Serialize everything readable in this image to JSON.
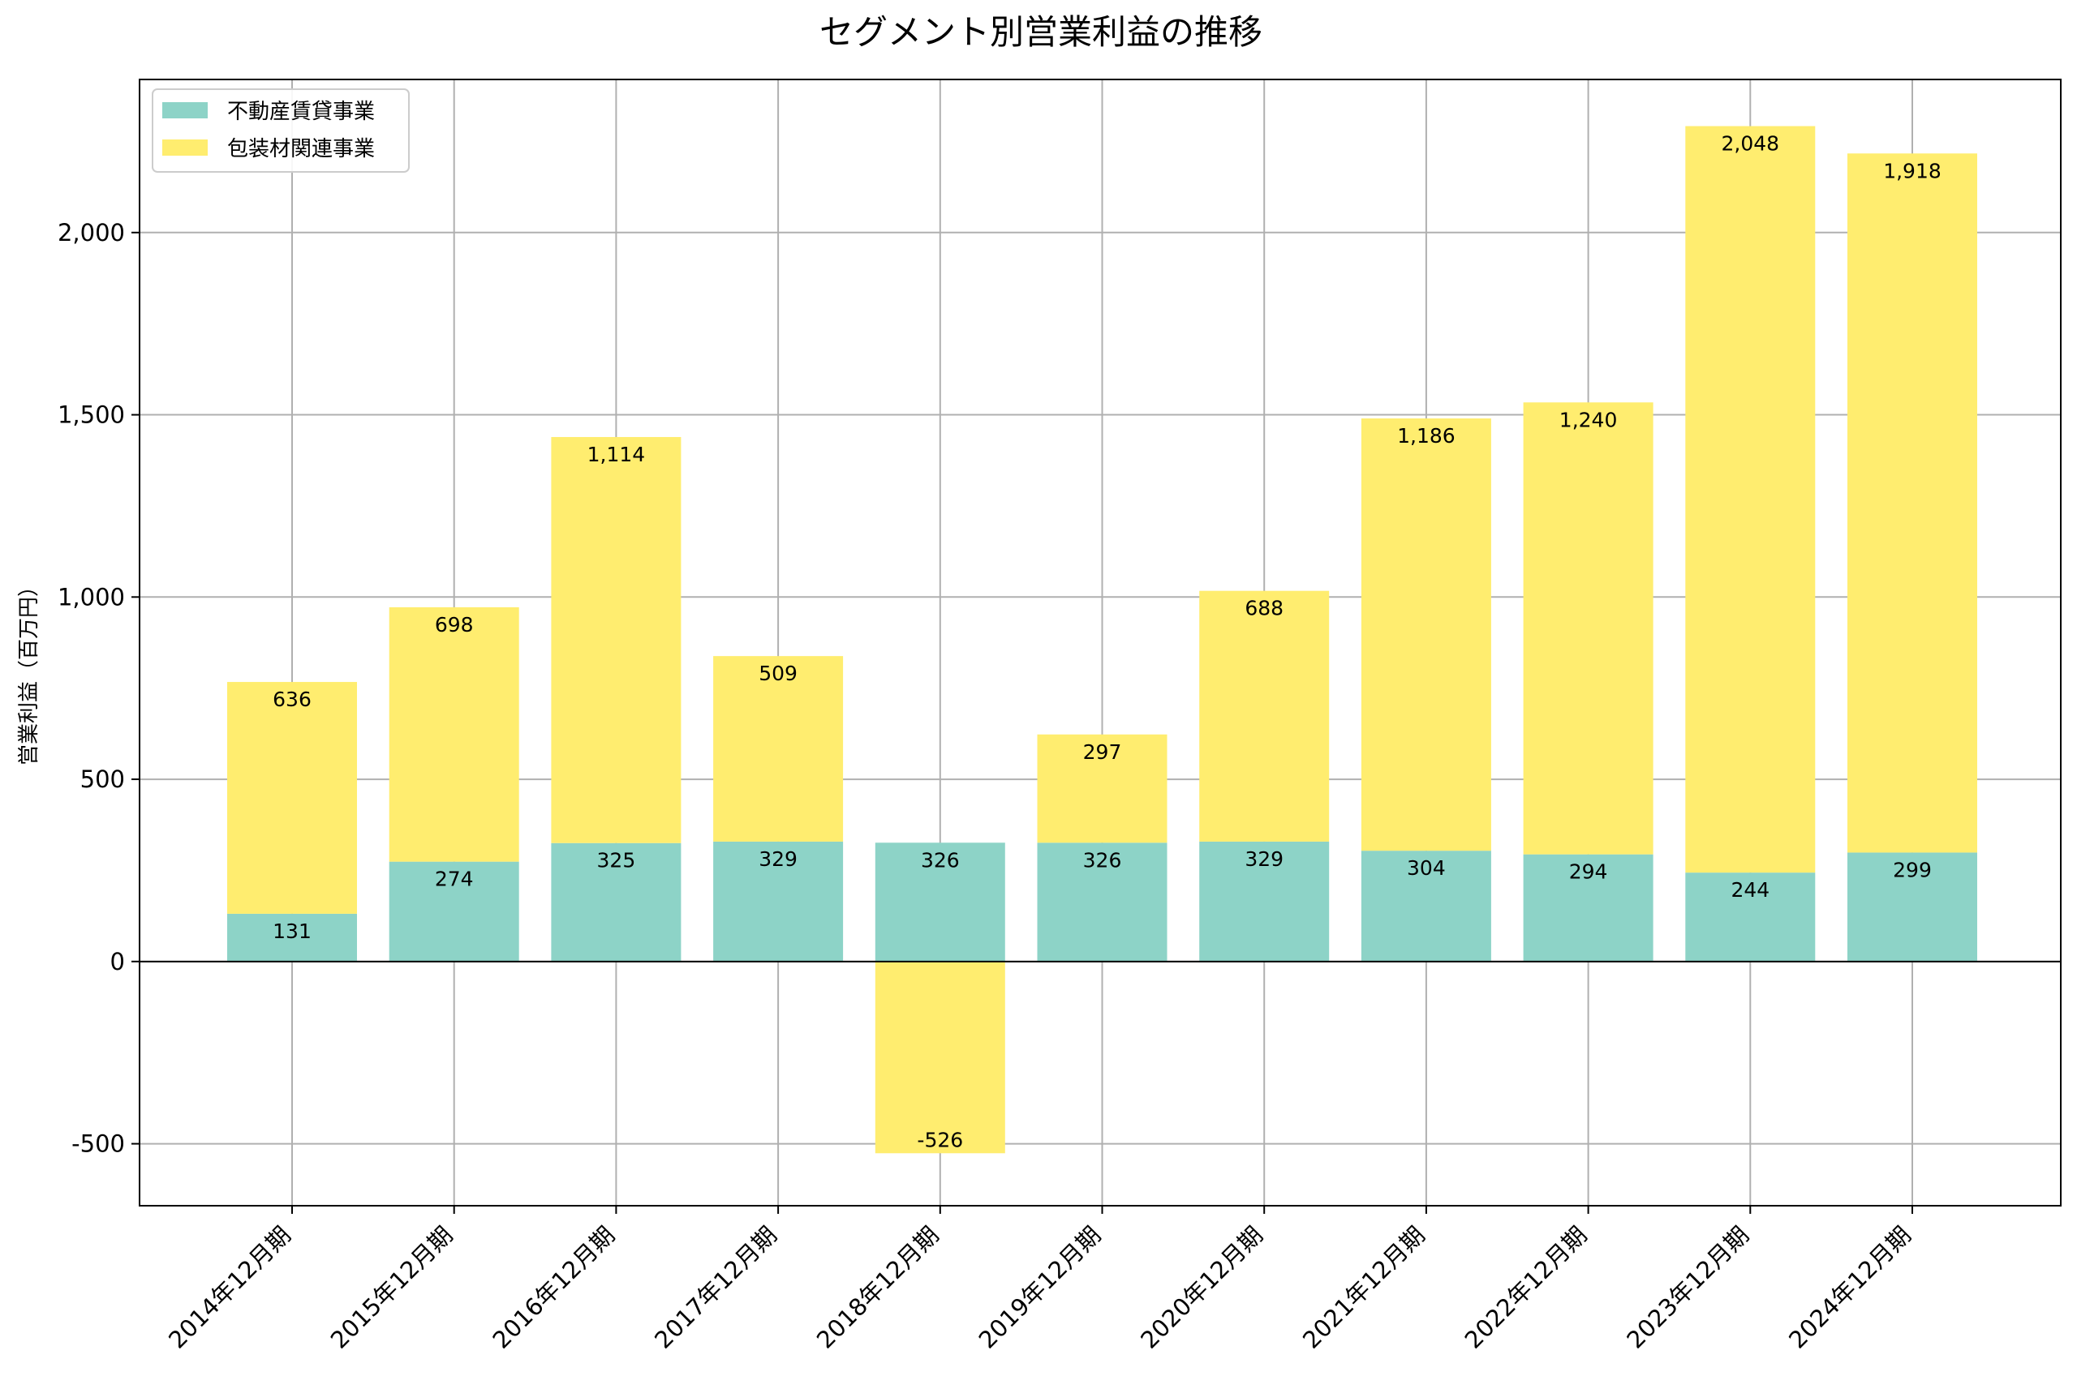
{
  "chart_data": {
    "type": "bar",
    "stacked": true,
    "title": "セグメント別営業利益の推移",
    "xlabel": "",
    "ylabel": "営業利益（百万円）",
    "ylim": [
      -670,
      2420
    ],
    "yticks": [
      -500,
      0,
      500,
      1000,
      1500,
      2000
    ],
    "ytick_labels": [
      "-500",
      "0",
      "500",
      "1,000",
      "1,500",
      "2,000"
    ],
    "grid": true,
    "legend_position": "top-left",
    "categories": [
      "2014年12月期",
      "2015年12月期",
      "2016年12月期",
      "2017年12月期",
      "2018年12月期",
      "2019年12月期",
      "2020年12月期",
      "2021年12月期",
      "2022年12月期",
      "2023年12月期",
      "2024年12月期"
    ],
    "series": [
      {
        "name": "不動産賃貸事業",
        "color": "#8dd3c7",
        "values": [
          131,
          274,
          325,
          329,
          326,
          326,
          329,
          304,
          294,
          244,
          299
        ],
        "labels": [
          "131",
          "274",
          "325",
          "329",
          "326",
          "326",
          "329",
          "304",
          "294",
          "244",
          "299"
        ]
      },
      {
        "name": "包装材関連事業",
        "color": "#ffed6f",
        "values": [
          636,
          698,
          1114,
          509,
          -526,
          297,
          688,
          1186,
          1240,
          2048,
          1918
        ],
        "labels": [
          "636",
          "698",
          "1,114",
          "509",
          "-526",
          "297",
          "688",
          "1,186",
          "1,240",
          "2,048",
          "1,918"
        ]
      }
    ]
  }
}
